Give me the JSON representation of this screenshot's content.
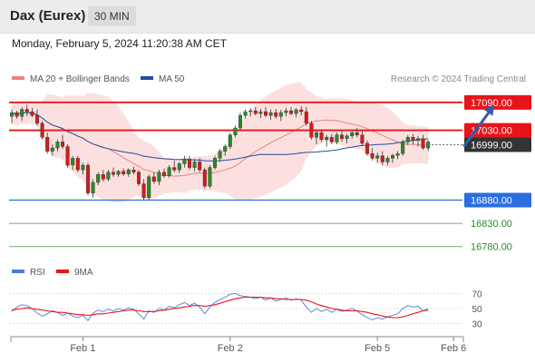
{
  "header": {
    "title": "Dax (Eurex)",
    "timeframe": "30 MIN",
    "timestamp": "Monday, February 5, 2024 11:20:38 AM CET"
  },
  "chart_data": [
    {
      "type": "candlestick",
      "title": "",
      "legend": [
        {
          "name": "MA 20 + Bollinger Bands",
          "color": "#f08080"
        },
        {
          "name": "MA 50",
          "color": "#1f4e9e"
        }
      ],
      "credit": "Research © 2024 Trading Central",
      "ylim": [
        16760,
        17115
      ],
      "current_price": {
        "label": "16999.00",
        "value": 16999
      },
      "levels": [
        {
          "label": "17090.00",
          "value": 17090,
          "color": "#e8141a",
          "kind": "resistance"
        },
        {
          "label": "17030.00",
          "value": 17030,
          "color": "#e8141a",
          "kind": "resistance"
        },
        {
          "label": "16880.00",
          "value": 16880,
          "color": "#2a6ee0",
          "kind": "support"
        },
        {
          "label": "16830.00",
          "value": 16830,
          "color": "#3a9e3a",
          "kind": "support"
        },
        {
          "label": "16780.00",
          "value": 16780,
          "color": "#3a9e3a",
          "kind": "support"
        }
      ],
      "x_ticks": [
        "Feb 1",
        "Feb 2",
        "Feb 5",
        "Feb 6"
      ],
      "x_tick_index": [
        14,
        43,
        72,
        87
      ],
      "forecast_arrow": {
        "from_index": 89,
        "from_value": 16995,
        "to_index": 95,
        "to_value": 17085,
        "color": "#2e5fa8"
      },
      "candles": [
        [
          17060,
          17075,
          17045,
          17068
        ],
        [
          17068,
          17072,
          17055,
          17060
        ],
        [
          17060,
          17080,
          17050,
          17075
        ],
        [
          17075,
          17085,
          17060,
          17070
        ],
        [
          17070,
          17078,
          17058,
          17062
        ],
        [
          17062,
          17075,
          17040,
          17045
        ],
        [
          17045,
          17050,
          17010,
          17015
        ],
        [
          17015,
          17025,
          16980,
          16985
        ],
        [
          16985,
          17000,
          16975,
          16992
        ],
        [
          16992,
          17010,
          16985,
          17005
        ],
        [
          17005,
          17020,
          16990,
          16995
        ],
        [
          16995,
          17000,
          16950,
          16955
        ],
        [
          16955,
          16975,
          16945,
          16970
        ],
        [
          16970,
          16975,
          16940,
          16945
        ],
        [
          16945,
          16960,
          16935,
          16955
        ],
        [
          16955,
          16960,
          16890,
          16895
        ],
        [
          16895,
          16925,
          16885,
          16918
        ],
        [
          16918,
          16940,
          16912,
          16935
        ],
        [
          16935,
          16945,
          16920,
          16925
        ],
        [
          16925,
          16945,
          16920,
          16940
        ],
        [
          16940,
          16950,
          16930,
          16935
        ],
        [
          16935,
          16945,
          16930,
          16942
        ],
        [
          16942,
          16948,
          16932,
          16936
        ],
        [
          16936,
          16948,
          16930,
          16945
        ],
        [
          16945,
          16952,
          16935,
          16940
        ],
        [
          16940,
          16945,
          16910,
          16915
        ],
        [
          16915,
          16925,
          16880,
          16885
        ],
        [
          16885,
          16935,
          16880,
          16930
        ],
        [
          16930,
          16940,
          16915,
          16920
        ],
        [
          16920,
          16945,
          16912,
          16940
        ],
        [
          16940,
          16948,
          16928,
          16932
        ],
        [
          16932,
          16955,
          16928,
          16950
        ],
        [
          16950,
          16965,
          16940,
          16945
        ],
        [
          16945,
          16962,
          16938,
          16958
        ],
        [
          16958,
          16975,
          16950,
          16968
        ],
        [
          16968,
          16975,
          16945,
          16950
        ],
        [
          16950,
          16968,
          16942,
          16962
        ],
        [
          16962,
          16970,
          16940,
          16945
        ],
        [
          16945,
          16950,
          16905,
          16910
        ],
        [
          16910,
          16955,
          16905,
          16950
        ],
        [
          16950,
          16975,
          16945,
          16970
        ],
        [
          16970,
          16990,
          16962,
          16985
        ],
        [
          16985,
          17000,
          16975,
          16995
        ],
        [
          16995,
          17025,
          16990,
          17020
        ],
        [
          17020,
          17040,
          17015,
          17035
        ],
        [
          17035,
          17068,
          17030,
          17062
        ],
        [
          17062,
          17075,
          17055,
          17070
        ],
        [
          17070,
          17078,
          17060,
          17072
        ],
        [
          17072,
          17080,
          17062,
          17066
        ],
        [
          17066,
          17076,
          17056,
          17070
        ],
        [
          17070,
          17080,
          17058,
          17062
        ],
        [
          17062,
          17075,
          17052,
          17068
        ],
        [
          17068,
          17076,
          17055,
          17060
        ],
        [
          17060,
          17074,
          17050,
          17068
        ],
        [
          17068,
          17078,
          17060,
          17072
        ],
        [
          17072,
          17080,
          17062,
          17066
        ],
        [
          17066,
          17078,
          17058,
          17074
        ],
        [
          17074,
          17082,
          17062,
          17070
        ],
        [
          17070,
          17080,
          17040,
          17045
        ],
        [
          17045,
          17050,
          17010,
          17015
        ],
        [
          17015,
          17030,
          17000,
          17025
        ],
        [
          17025,
          17032,
          17005,
          17010
        ],
        [
          17010,
          17020,
          16995,
          17015
        ],
        [
          17015,
          17022,
          17000,
          17005
        ],
        [
          17005,
          17025,
          17000,
          17020
        ],
        [
          17020,
          17030,
          17005,
          17012
        ],
        [
          17012,
          17022,
          17002,
          17018
        ],
        [
          17018,
          17030,
          17012,
          17025
        ],
        [
          17025,
          17035,
          17015,
          17020
        ],
        [
          17020,
          17028,
          16998,
          17002
        ],
        [
          17002,
          17008,
          16975,
          16980
        ],
        [
          16980,
          16992,
          16965,
          16970
        ],
        [
          16970,
          16982,
          16960,
          16975
        ],
        [
          16975,
          16985,
          16955,
          16962
        ],
        [
          16962,
          16975,
          16955,
          16970
        ],
        [
          16970,
          16980,
          16960,
          16976
        ],
        [
          16976,
          16985,
          16968,
          16980
        ],
        [
          16980,
          17010,
          16975,
          17005
        ],
        [
          17005,
          17020,
          16998,
          17015
        ],
        [
          17015,
          17022,
          17000,
          17008
        ],
        [
          17008,
          17018,
          16995,
          17012
        ],
        [
          17012,
          17020,
          16988,
          16992
        ],
        [
          16992,
          17010,
          16985,
          17005
        ]
      ]
    },
    {
      "type": "line",
      "legend": [
        {
          "name": "RSI",
          "color": "#4a7fd4"
        },
        {
          "name": "9MA",
          "color": "#e8141a"
        }
      ],
      "ylim": [
        20,
        80
      ],
      "y_ticks": [
        70,
        50,
        30
      ],
      "series": [
        {
          "name": "RSI",
          "values": [
            46,
            52,
            55,
            54,
            50,
            44,
            40,
            43,
            47,
            45,
            41,
            44,
            40,
            38,
            41,
            34,
            44,
            48,
            46,
            49,
            47,
            50,
            48,
            51,
            49,
            43,
            36,
            47,
            45,
            50,
            48,
            53,
            51,
            55,
            58,
            54,
            57,
            52,
            43,
            52,
            58,
            62,
            65,
            69,
            70,
            67,
            66,
            65,
            63,
            65,
            61,
            64,
            60,
            62,
            64,
            61,
            63,
            61,
            52,
            45,
            50,
            46,
            49,
            45,
            49,
            46,
            48,
            50,
            47,
            42,
            38,
            35,
            38,
            36,
            39,
            41,
            43,
            50,
            54,
            52,
            53,
            47,
            50
          ]
        },
        {
          "name": "9MA",
          "values": [
            48,
            49,
            50,
            51,
            50,
            49,
            48,
            47,
            46,
            45,
            45,
            44,
            43,
            42,
            42,
            41,
            42,
            43,
            43,
            44,
            45,
            46,
            47,
            48,
            48,
            47,
            46,
            46,
            46,
            47,
            48,
            49,
            50,
            51,
            52,
            53,
            54,
            54,
            53,
            54,
            55,
            57,
            59,
            61,
            63,
            64,
            65,
            65,
            65,
            65,
            64,
            64,
            63,
            63,
            62,
            62,
            62,
            62,
            61,
            59,
            56,
            54,
            52,
            50,
            49,
            48,
            47,
            47,
            47,
            46,
            45,
            43,
            42,
            40,
            39,
            38,
            38,
            39,
            41,
            43,
            45,
            47,
            48
          ]
        }
      ]
    }
  ]
}
